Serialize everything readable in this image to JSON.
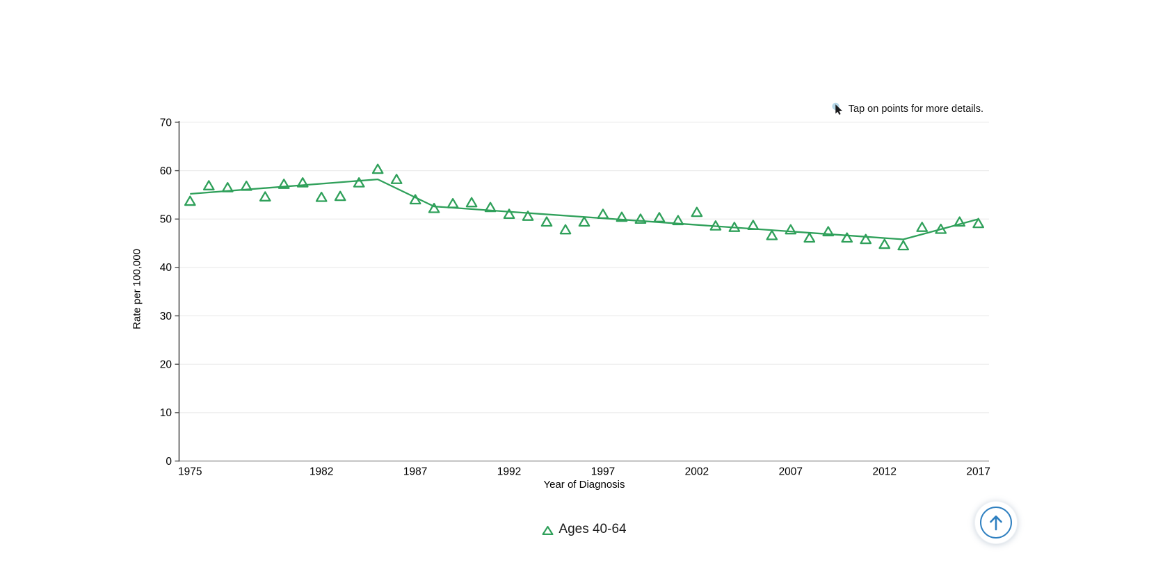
{
  "note": {
    "icon": "cursor-icon",
    "text": "Tap on points for more details."
  },
  "legend": {
    "marker": "open-triangle",
    "label": "Ages 40-64"
  },
  "scroll_top_button": {
    "icon": "arrow-up-icon"
  },
  "colors": {
    "series": "#2fa05a",
    "grid": "#ececec",
    "y_axis": "#4d4d4d",
    "x_axis": "#9e9e9e",
    "text": "#000000",
    "note_circle": "#b7d8e8",
    "note_cursor": "#1c1c1e",
    "button_blue": "#2e7fc0"
  },
  "chart_data": {
    "type": "scatter",
    "title": "",
    "xlabel": "Year of Diagnosis",
    "ylabel": "Rate per 100,000",
    "ylim": [
      0,
      70
    ],
    "xlim": [
      1974.4,
      2017.6
    ],
    "y_ticks": [
      0,
      10,
      20,
      30,
      40,
      50,
      60,
      70
    ],
    "x_ticks": [
      1975,
      1982,
      1987,
      1992,
      1997,
      2002,
      2007,
      2012,
      2017
    ],
    "grid": "horizontal",
    "legend_position": "bottom-center",
    "series": [
      {
        "name": "Ages 40-64",
        "marker": "open-triangle",
        "x": [
          1975,
          1976,
          1977,
          1978,
          1979,
          1980,
          1981,
          1982,
          1983,
          1984,
          1985,
          1986,
          1987,
          1988,
          1989,
          1990,
          1991,
          1992,
          1993,
          1994,
          1995,
          1996,
          1997,
          1998,
          1999,
          2000,
          2001,
          2002,
          2003,
          2004,
          2005,
          2006,
          2007,
          2008,
          2009,
          2010,
          2011,
          2012,
          2013,
          2014,
          2015,
          2016,
          2017
        ],
        "values": [
          53.7,
          56.9,
          56.5,
          56.8,
          54.6,
          57.2,
          57.5,
          54.5,
          54.7,
          57.5,
          60.3,
          58.2,
          54.0,
          52.2,
          53.2,
          53.4,
          52.4,
          51.0,
          50.6,
          49.4,
          47.8,
          49.4,
          51.0,
          50.4,
          50.0,
          50.3,
          49.7,
          51.4,
          48.6,
          48.3,
          48.7,
          46.6,
          47.8,
          46.1,
          47.4,
          46.1,
          45.8,
          44.8,
          44.5,
          48.3,
          47.9,
          49.4,
          49.1
        ]
      }
    ],
    "trend_line": {
      "name": "fitted-trend",
      "points": [
        [
          1975,
          55.2
        ],
        [
          1985,
          58.2
        ],
        [
          1988,
          52.6
        ],
        [
          2013,
          45.8
        ],
        [
          2017,
          50.0
        ]
      ]
    }
  }
}
